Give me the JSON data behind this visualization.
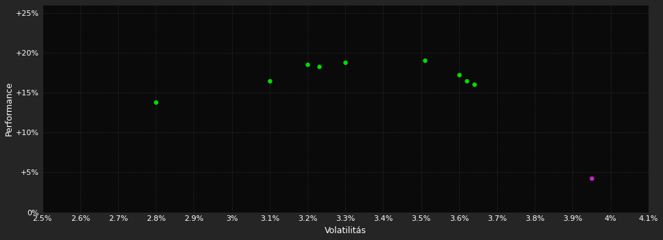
{
  "background_color": "#252525",
  "plot_bg_color": "#0a0a0a",
  "grid_color": "#404040",
  "grid_style": ":",
  "xlabel": "Volatilitás",
  "ylabel": "Performance",
  "xlim": [
    0.025,
    0.041
  ],
  "ylim": [
    0.0,
    0.26
  ],
  "xticks": [
    0.025,
    0.026,
    0.027,
    0.028,
    0.029,
    0.03,
    0.031,
    0.032,
    0.033,
    0.034,
    0.035,
    0.036,
    0.037,
    0.038,
    0.039,
    0.04,
    0.041
  ],
  "yticks": [
    0.0,
    0.05,
    0.1,
    0.15,
    0.2,
    0.25
  ],
  "xtick_labels": [
    "2.5%",
    "2.6%",
    "2.7%",
    "2.8%",
    "2.9%",
    "3%",
    "3.1%",
    "3.2%",
    "3.3%",
    "3.4%",
    "3.5%",
    "3.6%",
    "3.7%",
    "3.8%",
    "3.9%",
    "4%",
    "4.1%"
  ],
  "ytick_labels": [
    "0%",
    "+5%",
    "+10%",
    "+15%",
    "+20%",
    "+25%"
  ],
  "green_points": [
    [
      0.028,
      0.138
    ],
    [
      0.031,
      0.165
    ],
    [
      0.032,
      0.185
    ],
    [
      0.0323,
      0.183
    ],
    [
      0.033,
      0.188
    ],
    [
      0.0351,
      0.19
    ],
    [
      0.036,
      0.172
    ],
    [
      0.0362,
      0.165
    ],
    [
      0.0364,
      0.16
    ]
  ],
  "purple_points": [
    [
      0.0395,
      0.043
    ]
  ],
  "green_color": "#00dd00",
  "purple_color": "#cc22cc",
  "marker_size": 22,
  "tick_label_color": "#ffffff",
  "axis_label_color": "#ffffff",
  "tick_fontsize": 8,
  "label_fontsize": 9
}
